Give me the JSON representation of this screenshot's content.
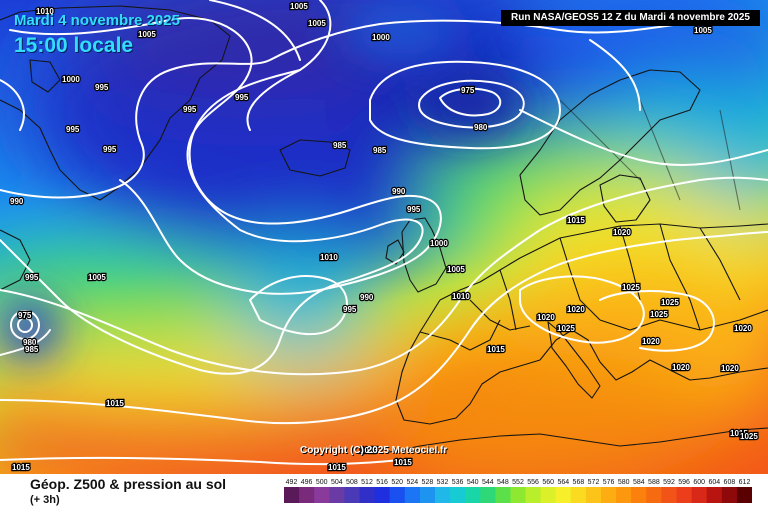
{
  "header": {
    "date": "Mardi 4 novembre 2025",
    "time": "15:00 locale",
    "run": "Run NASA/GEOS5 12 Z du Mardi 4 novembre 2025"
  },
  "map": {
    "copyright": "Copyright (C) 2025 Meteociel.fr",
    "pressure_labels": [
      "1010",
      "1005",
      "1005",
      "1005",
      "1000",
      "1000",
      "995",
      "995",
      "995",
      "995",
      "995",
      "975",
      "980",
      "985",
      "985",
      "990",
      "990",
      "995",
      "1000",
      "1005",
      "1010",
      "1015",
      "1015",
      "1020",
      "1020",
      "1025",
      "1025",
      "1025",
      "1020",
      "1025",
      "1020",
      "1020",
      "1020",
      "1015",
      "995",
      "975",
      "980",
      "985",
      "1005",
      "1015",
      "1015",
      "1015",
      "1015",
      "1005",
      "990",
      "995",
      "1015",
      "1020",
      "1010",
      "1025"
    ],
    "colors": {
      "low": "#1f2fc9",
      "mid": "#17c9d1",
      "high": "#ff8a0a",
      "isobar": "#ffffff",
      "coast": "#1a1a1a"
    }
  },
  "footer": {
    "title": "Géop. Z500 & pression au sol",
    "subtitle": "(+ 3h)"
  },
  "legend": {
    "values": [
      "492",
      "496",
      "500",
      "504",
      "508",
      "512",
      "516",
      "520",
      "524",
      "528",
      "532",
      "536",
      "540",
      "544",
      "548",
      "552",
      "556",
      "560",
      "564",
      "568",
      "572",
      "576",
      "580",
      "584",
      "588",
      "592",
      "596",
      "600",
      "604",
      "608",
      "612"
    ],
    "colors": [
      "#5a1a5a",
      "#7a2a7a",
      "#8a3a9a",
      "#6a3aa5",
      "#4a3ab8",
      "#3030c8",
      "#1f2fe0",
      "#1a50f0",
      "#1b75f5",
      "#1d95f0",
      "#20b8e8",
      "#17cbd4",
      "#19d6a8",
      "#2ed877",
      "#5ce04a",
      "#8ee832",
      "#b8ee2a",
      "#dcf02a",
      "#f6ef2a",
      "#fbdb20",
      "#fcc418",
      "#fdad12",
      "#fd970e",
      "#fb800c",
      "#f66a10",
      "#f25418",
      "#ec3e1a",
      "#d82818",
      "#b81510",
      "#90090a",
      "#5a0000"
    ]
  }
}
